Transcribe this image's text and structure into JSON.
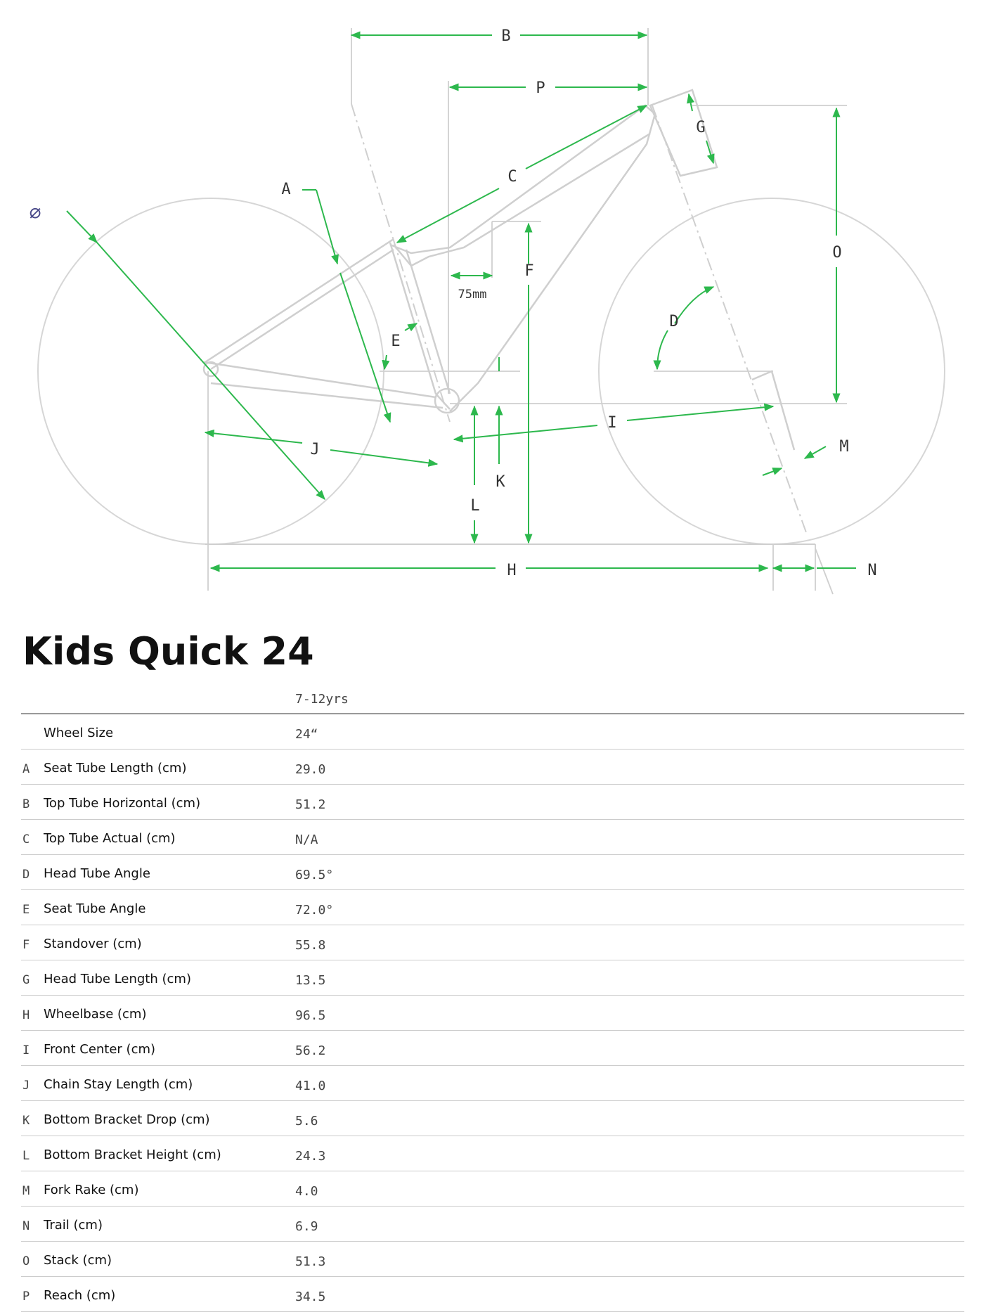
{
  "diagram": {
    "labels": {
      "B": "B",
      "P": "P",
      "G": "G",
      "C": "C",
      "A": "A",
      "O": "O",
      "F": "F",
      "seat_offset": "75mm",
      "D": "D",
      "E": "E",
      "I": "I",
      "M": "M",
      "J": "J",
      "K": "K",
      "L": "L",
      "H": "H",
      "N": "N",
      "diameter": "⌀"
    },
    "accent_color": "#2db84d",
    "line_color": "#cfcfcf"
  },
  "model": {
    "title": "Kids Quick 24",
    "size_label": "7-12yrs"
  },
  "geometry": [
    {
      "key": "",
      "name": "Wheel Size",
      "value": "24“"
    },
    {
      "key": "A",
      "name": "Seat Tube Length (cm)",
      "value": "29.0"
    },
    {
      "key": "B",
      "name": "Top Tube Horizontal (cm)",
      "value": "51.2"
    },
    {
      "key": "C",
      "name": "Top Tube Actual (cm)",
      "value": "N/A"
    },
    {
      "key": "D",
      "name": "Head Tube Angle",
      "value": "69.5°"
    },
    {
      "key": "E",
      "name": "Seat Tube Angle",
      "value": "72.0°"
    },
    {
      "key": "F",
      "name": "Standover (cm)",
      "value": "55.8"
    },
    {
      "key": "G",
      "name": "Head Tube Length (cm)",
      "value": "13.5"
    },
    {
      "key": "H",
      "name": "Wheelbase (cm)",
      "value": "96.5"
    },
    {
      "key": "I",
      "name": "Front Center (cm)",
      "value": "56.2"
    },
    {
      "key": "J",
      "name": "Chain Stay Length (cm)",
      "value": "41.0"
    },
    {
      "key": "K",
      "name": "Bottom Bracket Drop (cm)",
      "value": "5.6"
    },
    {
      "key": "L",
      "name": "Bottom Bracket Height (cm)",
      "value": "24.3"
    },
    {
      "key": "M",
      "name": "Fork Rake (cm)",
      "value": "4.0"
    },
    {
      "key": "N",
      "name": "Trail (cm)",
      "value": "6.9"
    },
    {
      "key": "O",
      "name": "Stack (cm)",
      "value": "51.3"
    },
    {
      "key": "P",
      "name": "Reach (cm)",
      "value": "34.5"
    }
  ]
}
